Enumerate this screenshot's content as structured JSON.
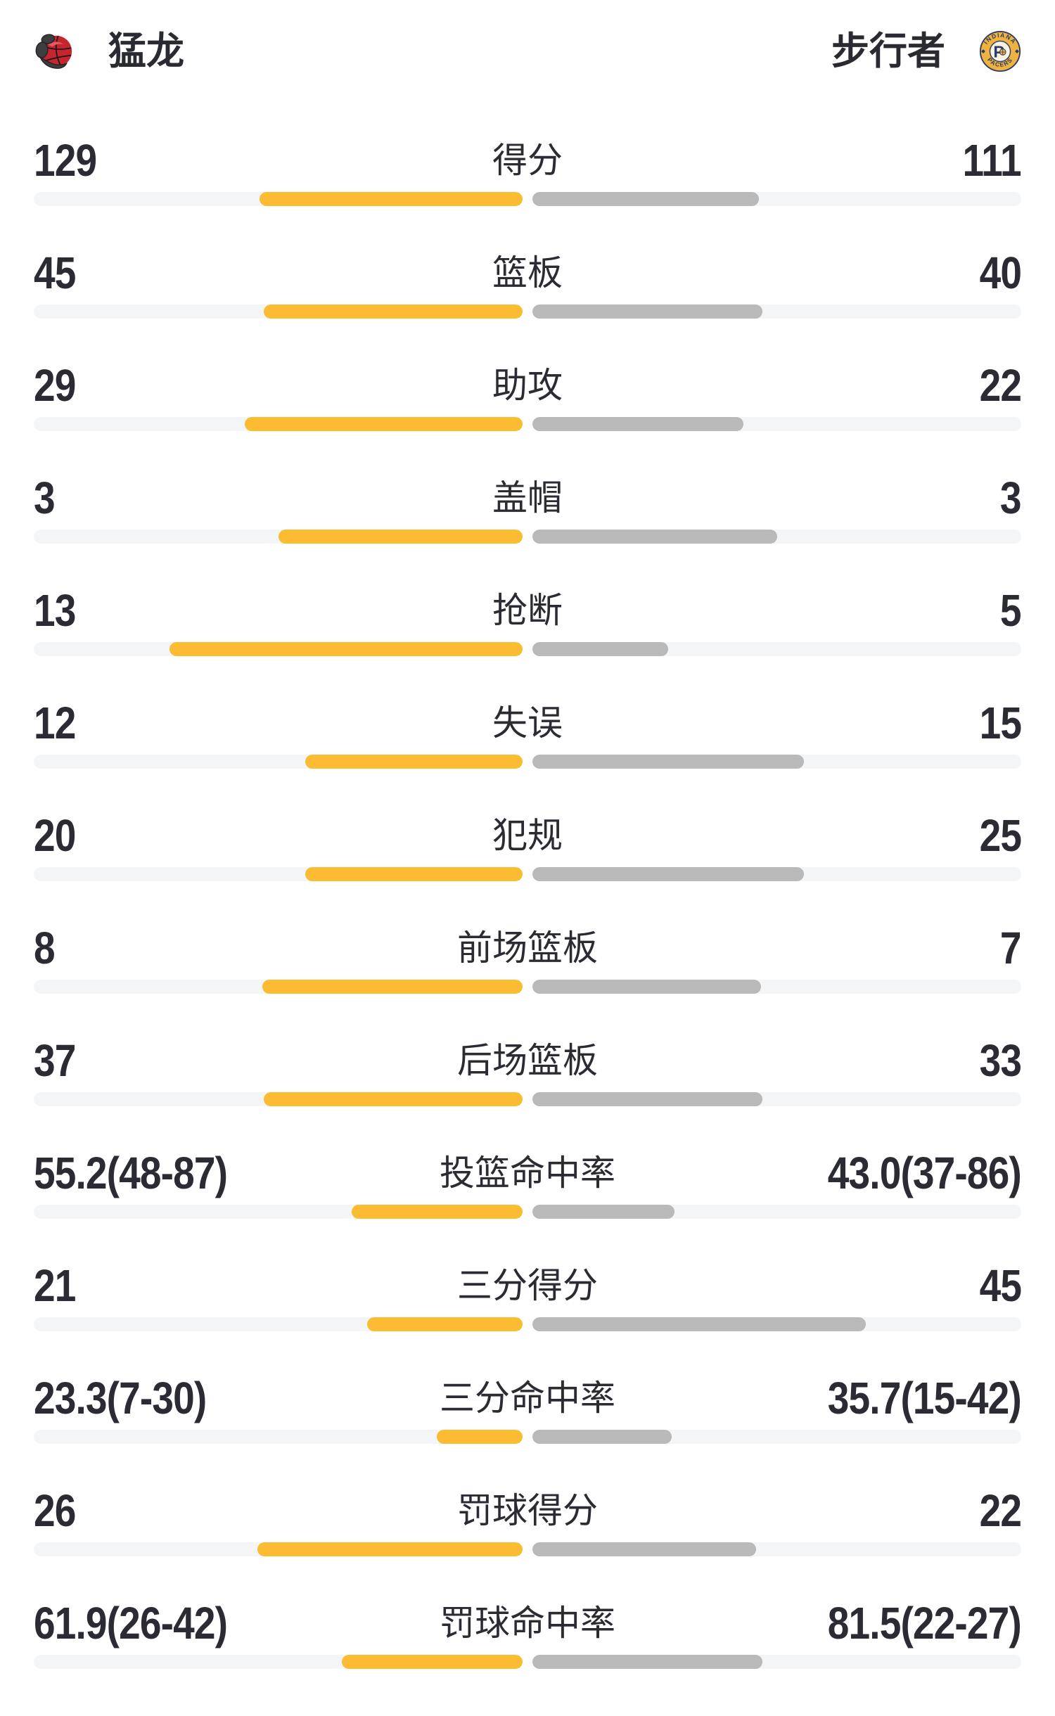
{
  "header": {
    "home_team": {
      "name": "猛龙",
      "logo": "raptors-logo"
    },
    "away_team": {
      "name": "步行者",
      "logo": "pacers-logo",
      "logo_text_top": "INDIANA",
      "logo_text_bottom": "PACERS",
      "logo_letter": "P"
    }
  },
  "colors": {
    "home_bar": "#FBBB33",
    "away_bar": "#B9B9B9",
    "bar_track": "#F4F5F7",
    "text": "#2B2B33",
    "raptors_red": "#C5262E",
    "pacers_gold": "#EDB23F",
    "pacers_navy": "#2B3A67"
  },
  "chart_data": {
    "type": "bar",
    "layout": "paired-horizontal-comparison",
    "teams": [
      "猛龙",
      "步行者"
    ],
    "grid": false,
    "legend_position": "top-header",
    "stats": [
      {
        "label": "得分",
        "home_value": "129",
        "away_value": "111",
        "home_fill_pct": 53.8,
        "away_fill_pct": 46.3
      },
      {
        "label": "篮板",
        "home_value": "45",
        "away_value": "40",
        "home_fill_pct": 52.9,
        "away_fill_pct": 47.1
      },
      {
        "label": "助攻",
        "home_value": "29",
        "away_value": "22",
        "home_fill_pct": 56.9,
        "away_fill_pct": 43.1
      },
      {
        "label": "盖帽",
        "home_value": "3",
        "away_value": "3",
        "home_fill_pct": 50,
        "away_fill_pct": 50
      },
      {
        "label": "抢断",
        "home_value": "13",
        "away_value": "5",
        "home_fill_pct": 72.2,
        "away_fill_pct": 27.8
      },
      {
        "label": "失误",
        "home_value": "12",
        "away_value": "15",
        "home_fill_pct": 44.4,
        "away_fill_pct": 55.6
      },
      {
        "label": "犯规",
        "home_value": "20",
        "away_value": "25",
        "home_fill_pct": 44.4,
        "away_fill_pct": 55.6
      },
      {
        "label": "前场篮板",
        "home_value": "8",
        "away_value": "7",
        "home_fill_pct": 53.3,
        "away_fill_pct": 46.7
      },
      {
        "label": "后场篮板",
        "home_value": "37",
        "away_value": "33",
        "home_fill_pct": 52.9,
        "away_fill_pct": 47.1
      },
      {
        "label": "投篮命中率",
        "home_value": "55.2(48-87)",
        "away_value": "43.0(37-86)",
        "home_fill_pct": 35,
        "away_fill_pct": 29
      },
      {
        "label": "三分得分",
        "home_value": "21",
        "away_value": "45",
        "home_fill_pct": 31.8,
        "away_fill_pct": 68.2
      },
      {
        "label": "三分命中率",
        "home_value": "23.3(7-30)",
        "away_value": "35.7(15-42)",
        "home_fill_pct": 17.5,
        "away_fill_pct": 28.5
      },
      {
        "label": "罚球得分",
        "home_value": "26",
        "away_value": "22",
        "home_fill_pct": 54.2,
        "away_fill_pct": 45.8
      },
      {
        "label": "罚球命中率",
        "home_value": "61.9(26-42)",
        "away_value": "81.5(22-27)",
        "home_fill_pct": 37,
        "away_fill_pct": 47
      }
    ]
  }
}
